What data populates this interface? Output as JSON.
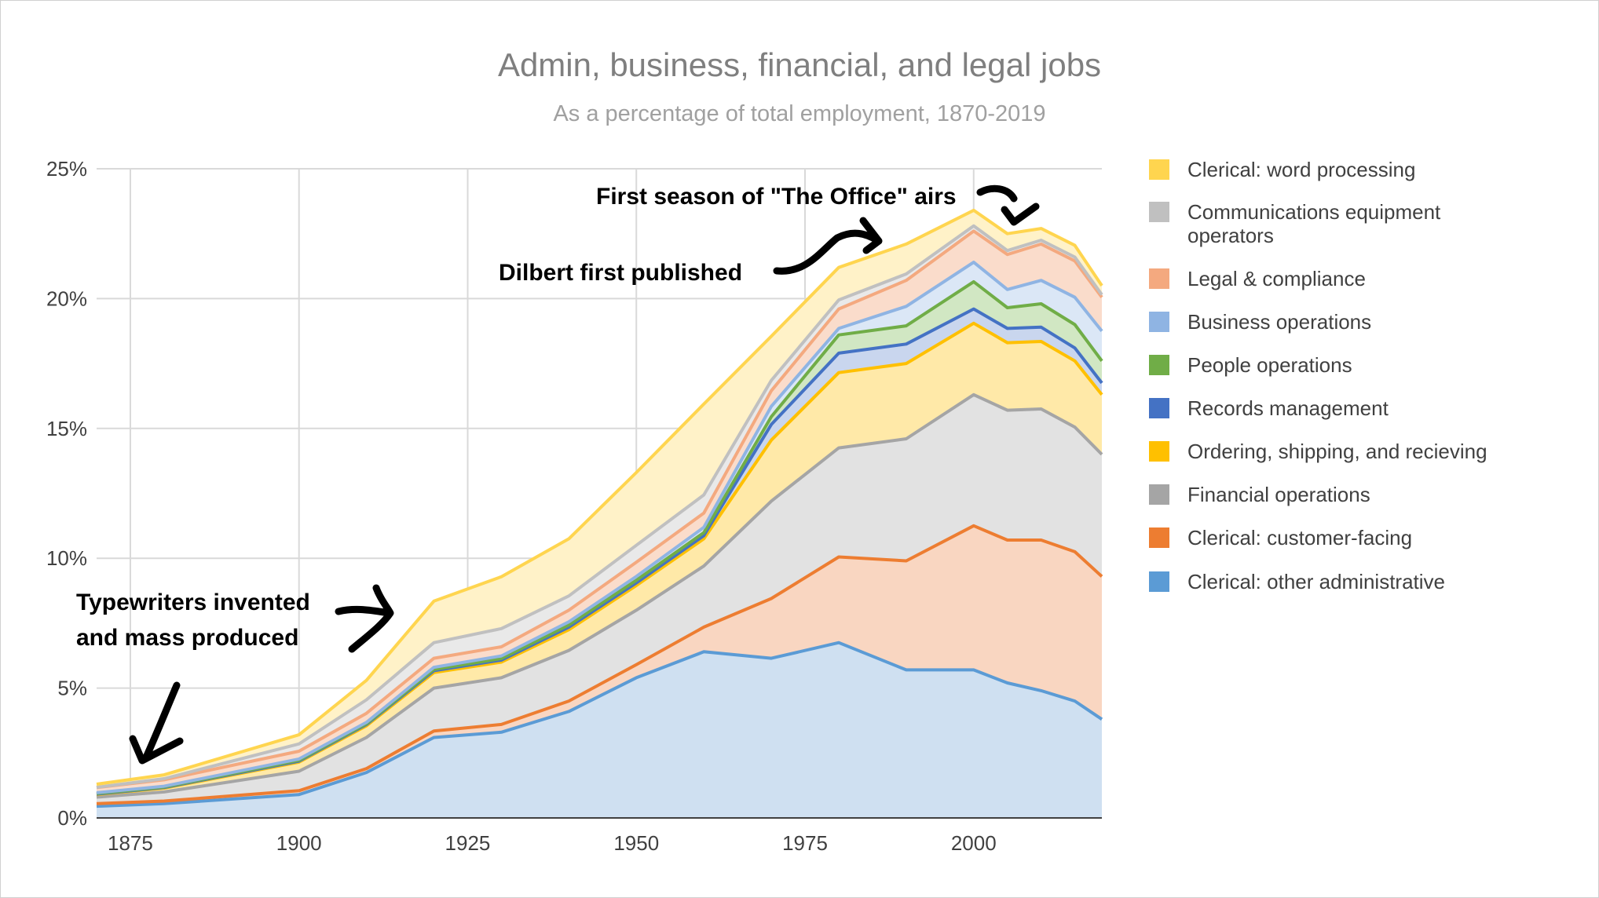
{
  "chart_data": {
    "type": "area",
    "stacked": true,
    "title": "Admin, business, financial, and legal jobs",
    "subtitle": "As a percentage of total employment, 1870-2019",
    "xlabel": "",
    "ylabel": "",
    "x": [
      1870,
      1880,
      1900,
      1910,
      1920,
      1930,
      1940,
      1950,
      1960,
      1970,
      1980,
      1990,
      2000,
      2005,
      2010,
      2015,
      2019
    ],
    "xlim": [
      1870,
      2019
    ],
    "xticks": [
      "1875",
      "1900",
      "1925",
      "1950",
      "1975",
      "2000"
    ],
    "xtick_values": [
      1875,
      1900,
      1925,
      1950,
      1975,
      2000
    ],
    "ylim": [
      0,
      25
    ],
    "yticks": [
      "0%",
      "5%",
      "10%",
      "15%",
      "20%",
      "25%"
    ],
    "ytick_values": [
      0,
      5,
      10,
      15,
      20,
      25
    ],
    "grid": true,
    "legend_position": "right",
    "series": [
      {
        "name": "Clerical: other administrative",
        "color": "#5b9bd5",
        "fill": "#cfe0f1",
        "values": [
          0.45,
          0.55,
          0.9,
          1.75,
          3.1,
          3.3,
          4.1,
          5.4,
          6.4,
          6.15,
          6.75,
          5.7,
          5.7,
          5.2,
          4.9,
          4.5,
          3.8
        ]
      },
      {
        "name": "Clerical: customer-facing",
        "color": "#ed7d31",
        "fill": "#f9d6c1",
        "values": [
          0.1,
          0.1,
          0.15,
          0.15,
          0.25,
          0.3,
          0.4,
          0.5,
          0.95,
          2.3,
          3.3,
          4.2,
          5.55,
          5.5,
          5.8,
          5.75,
          5.5
        ]
      },
      {
        "name": "Financial operations",
        "color": "#a5a5a5",
        "fill": "#e2e2e2",
        "values": [
          0.25,
          0.35,
          0.75,
          1.2,
          1.65,
          1.8,
          1.95,
          2.1,
          2.35,
          3.75,
          4.2,
          4.7,
          5.05,
          5.0,
          5.05,
          4.8,
          4.7
        ]
      },
      {
        "name": "Ordering, shipping, and recieving",
        "color": "#ffc000",
        "fill": "#ffe9a8",
        "values": [
          0.1,
          0.15,
          0.35,
          0.45,
          0.6,
          0.6,
          0.8,
          0.95,
          1.05,
          2.35,
          2.9,
          2.9,
          2.75,
          2.6,
          2.6,
          2.55,
          2.3
        ]
      },
      {
        "name": "Records management",
        "color": "#4472c4",
        "fill": "#c9d6ee",
        "values": [
          0.02,
          0.02,
          0.04,
          0.05,
          0.07,
          0.08,
          0.1,
          0.1,
          0.12,
          0.6,
          0.75,
          0.75,
          0.55,
          0.55,
          0.55,
          0.5,
          0.45
        ]
      },
      {
        "name": "People operations",
        "color": "#70ad47",
        "fill": "#d1e7c3",
        "values": [
          0.02,
          0.02,
          0.03,
          0.03,
          0.05,
          0.06,
          0.08,
          0.1,
          0.12,
          0.3,
          0.7,
          0.7,
          1.05,
          0.8,
          0.9,
          0.9,
          0.85
        ]
      },
      {
        "name": "Business operations",
        "color": "#8fb4e3",
        "fill": "#dbe7f6",
        "values": [
          0.03,
          0.03,
          0.05,
          0.05,
          0.08,
          0.1,
          0.12,
          0.15,
          0.2,
          0.4,
          0.25,
          0.75,
          0.75,
          0.7,
          0.9,
          1.05,
          1.15
        ]
      },
      {
        "name": "Legal & compliance",
        "color": "#f4a97f",
        "fill": "#fadccb",
        "values": [
          0.2,
          0.25,
          0.3,
          0.35,
          0.35,
          0.35,
          0.45,
          0.55,
          0.55,
          0.6,
          0.75,
          1.0,
          1.2,
          1.35,
          1.4,
          1.4,
          1.3
        ]
      },
      {
        "name": "Communications equipment operators",
        "color": "#c0c0c0",
        "fill": "#e9e9e9",
        "values": [
          0.01,
          0.04,
          0.28,
          0.52,
          0.6,
          0.7,
          0.55,
          0.65,
          0.7,
          0.4,
          0.35,
          0.25,
          0.2,
          0.15,
          0.15,
          0.15,
          0.1
        ]
      },
      {
        "name": "Clerical: word processing",
        "color": "#ffd54f",
        "fill": "#fff2c8",
        "values": [
          0.12,
          0.15,
          0.35,
          0.75,
          1.6,
          2.0,
          2.2,
          2.8,
          3.5,
          1.7,
          1.25,
          1.15,
          0.6,
          0.65,
          0.45,
          0.45,
          0.35
        ]
      }
    ],
    "legend_order": [
      "Clerical: word processing",
      "Communications equipment operators",
      "Legal & compliance",
      "Business operations",
      "People operations",
      "Records management",
      "Ordering, shipping, and recieving",
      "Financial operations",
      "Clerical: customer-facing",
      "Clerical: other administrative"
    ],
    "annotations": [
      {
        "name": "annotation-typewriters",
        "lines": [
          "Typewriters invented",
          "and mass produced"
        ]
      },
      {
        "name": "annotation-dilbert",
        "lines": [
          "Dilbert first published"
        ]
      },
      {
        "name": "annotation-the-office",
        "lines": [
          "First season of \"The Office\" airs"
        ]
      }
    ]
  }
}
